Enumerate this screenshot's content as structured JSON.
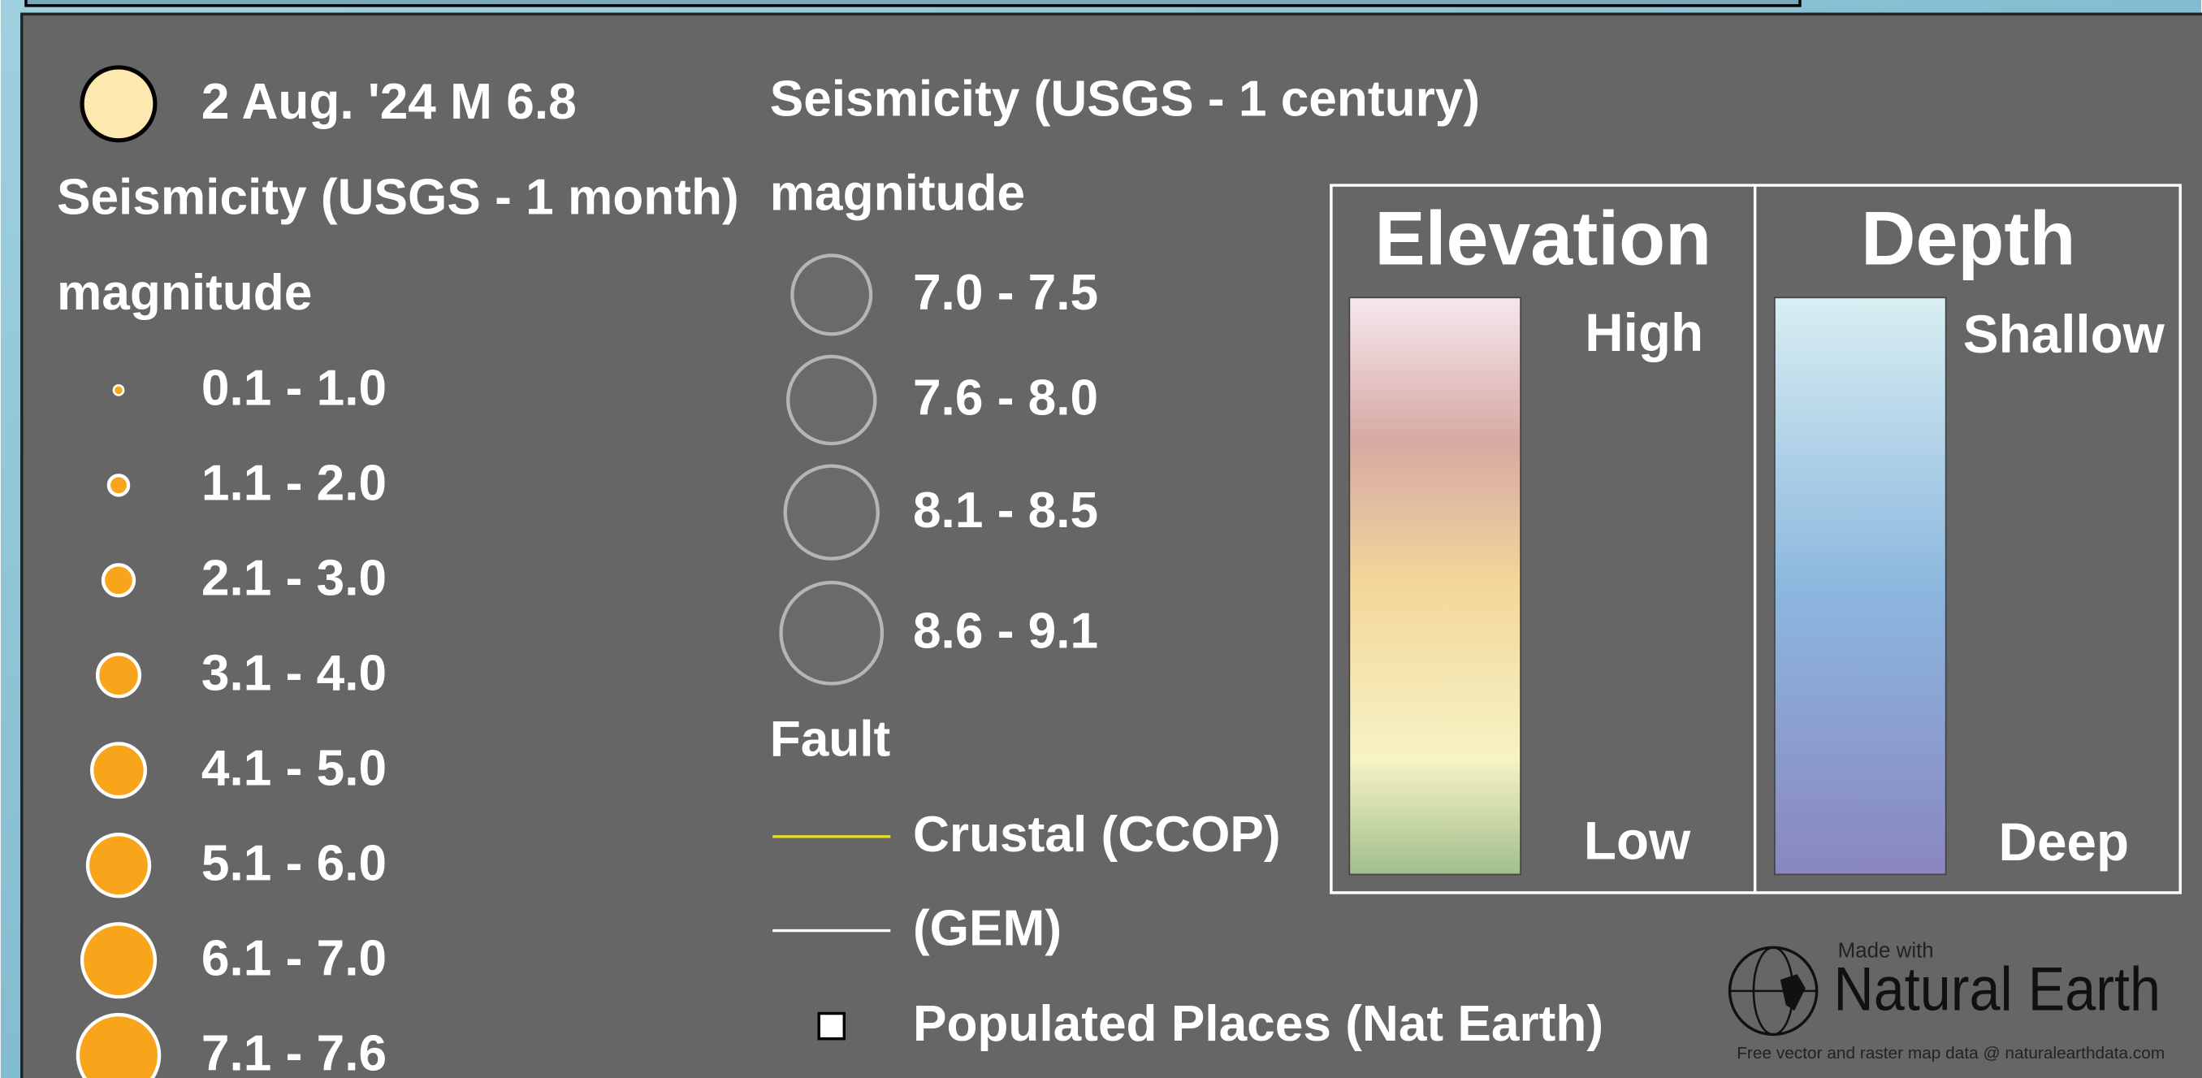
{
  "event": {
    "label": "2 Aug. '24 M 6.8"
  },
  "month": {
    "title": "Seismicity (USGS - 1 month)",
    "subtitle": "magnitude",
    "classes": [
      "0.1 - 1.0",
      "1.1 - 2.0",
      "2.1 - 3.0",
      "3.1 - 4.0",
      "4.1 - 5.0",
      "5.1 - 6.0",
      "6.1 - 7.0",
      "7.1 - 7.6"
    ]
  },
  "century": {
    "title": "Seismicity (USGS - 1 century)",
    "subtitle": "magnitude",
    "classes": [
      "7.0 - 7.5",
      "7.6 - 8.0",
      "8.1 - 8.5",
      "8.6 - 9.1"
    ]
  },
  "fault": {
    "title": "Fault",
    "items": [
      "Crustal (CCOP)",
      "(GEM)"
    ]
  },
  "places": "Populated Places (Nat Earth)",
  "elevation": {
    "title": "Elevation",
    "high": "High",
    "low": "Low"
  },
  "depth": {
    "title": "Depth",
    "high": "Shallow",
    "low": "Deep"
  },
  "credit": {
    "made_with": "Made with",
    "brand": "Natural Earth",
    "tagline": "Free vector and raster map data @ naturalearthdata.com"
  }
}
